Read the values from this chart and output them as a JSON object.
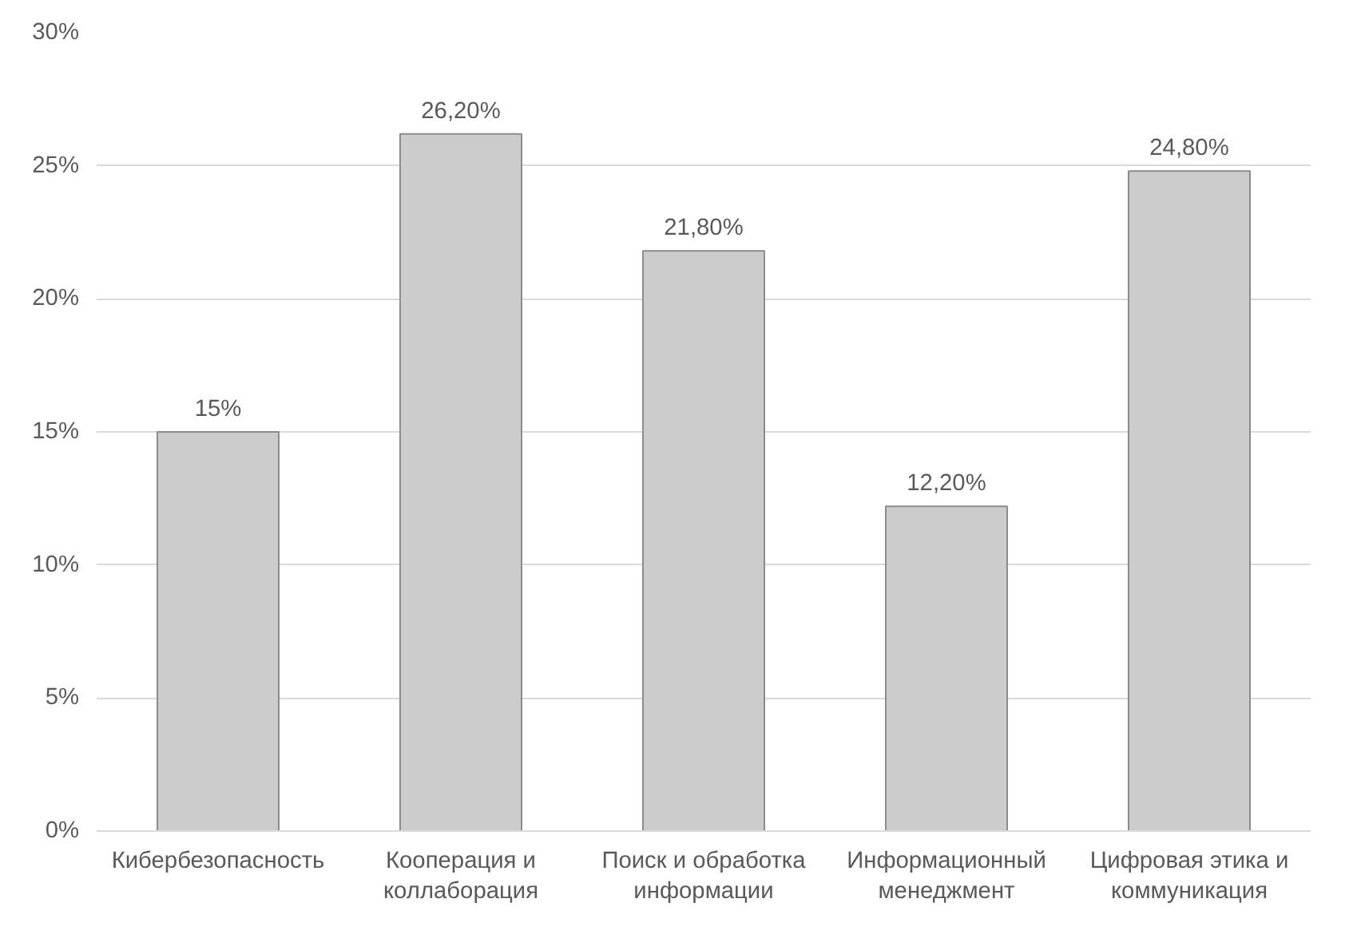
{
  "chart_data": {
    "type": "bar",
    "categories": [
      "Кибербезопасность",
      "Кооперация и коллаборация",
      "Поиск и обработка информации",
      "Информационный менеджмент",
      "Цифровая этика и коммуникация"
    ],
    "values": [
      15,
      26.2,
      21.8,
      12.2,
      24.8
    ],
    "value_labels": [
      "15%",
      "26,20%",
      "21,80%",
      "12,20%",
      "24,80%"
    ],
    "color": "#cccccc",
    "ylim": [
      0,
      30
    ],
    "yticks": [
      {
        "value": 0,
        "label": "0%"
      },
      {
        "value": 5,
        "label": "5%"
      },
      {
        "value": 10,
        "label": "10%"
      },
      {
        "value": 15,
        "label": "15%"
      },
      {
        "value": 20,
        "label": "20%"
      },
      {
        "value": 25,
        "label": "25%"
      },
      {
        "value": 30,
        "label": "30%"
      }
    ],
    "grid": "y"
  }
}
